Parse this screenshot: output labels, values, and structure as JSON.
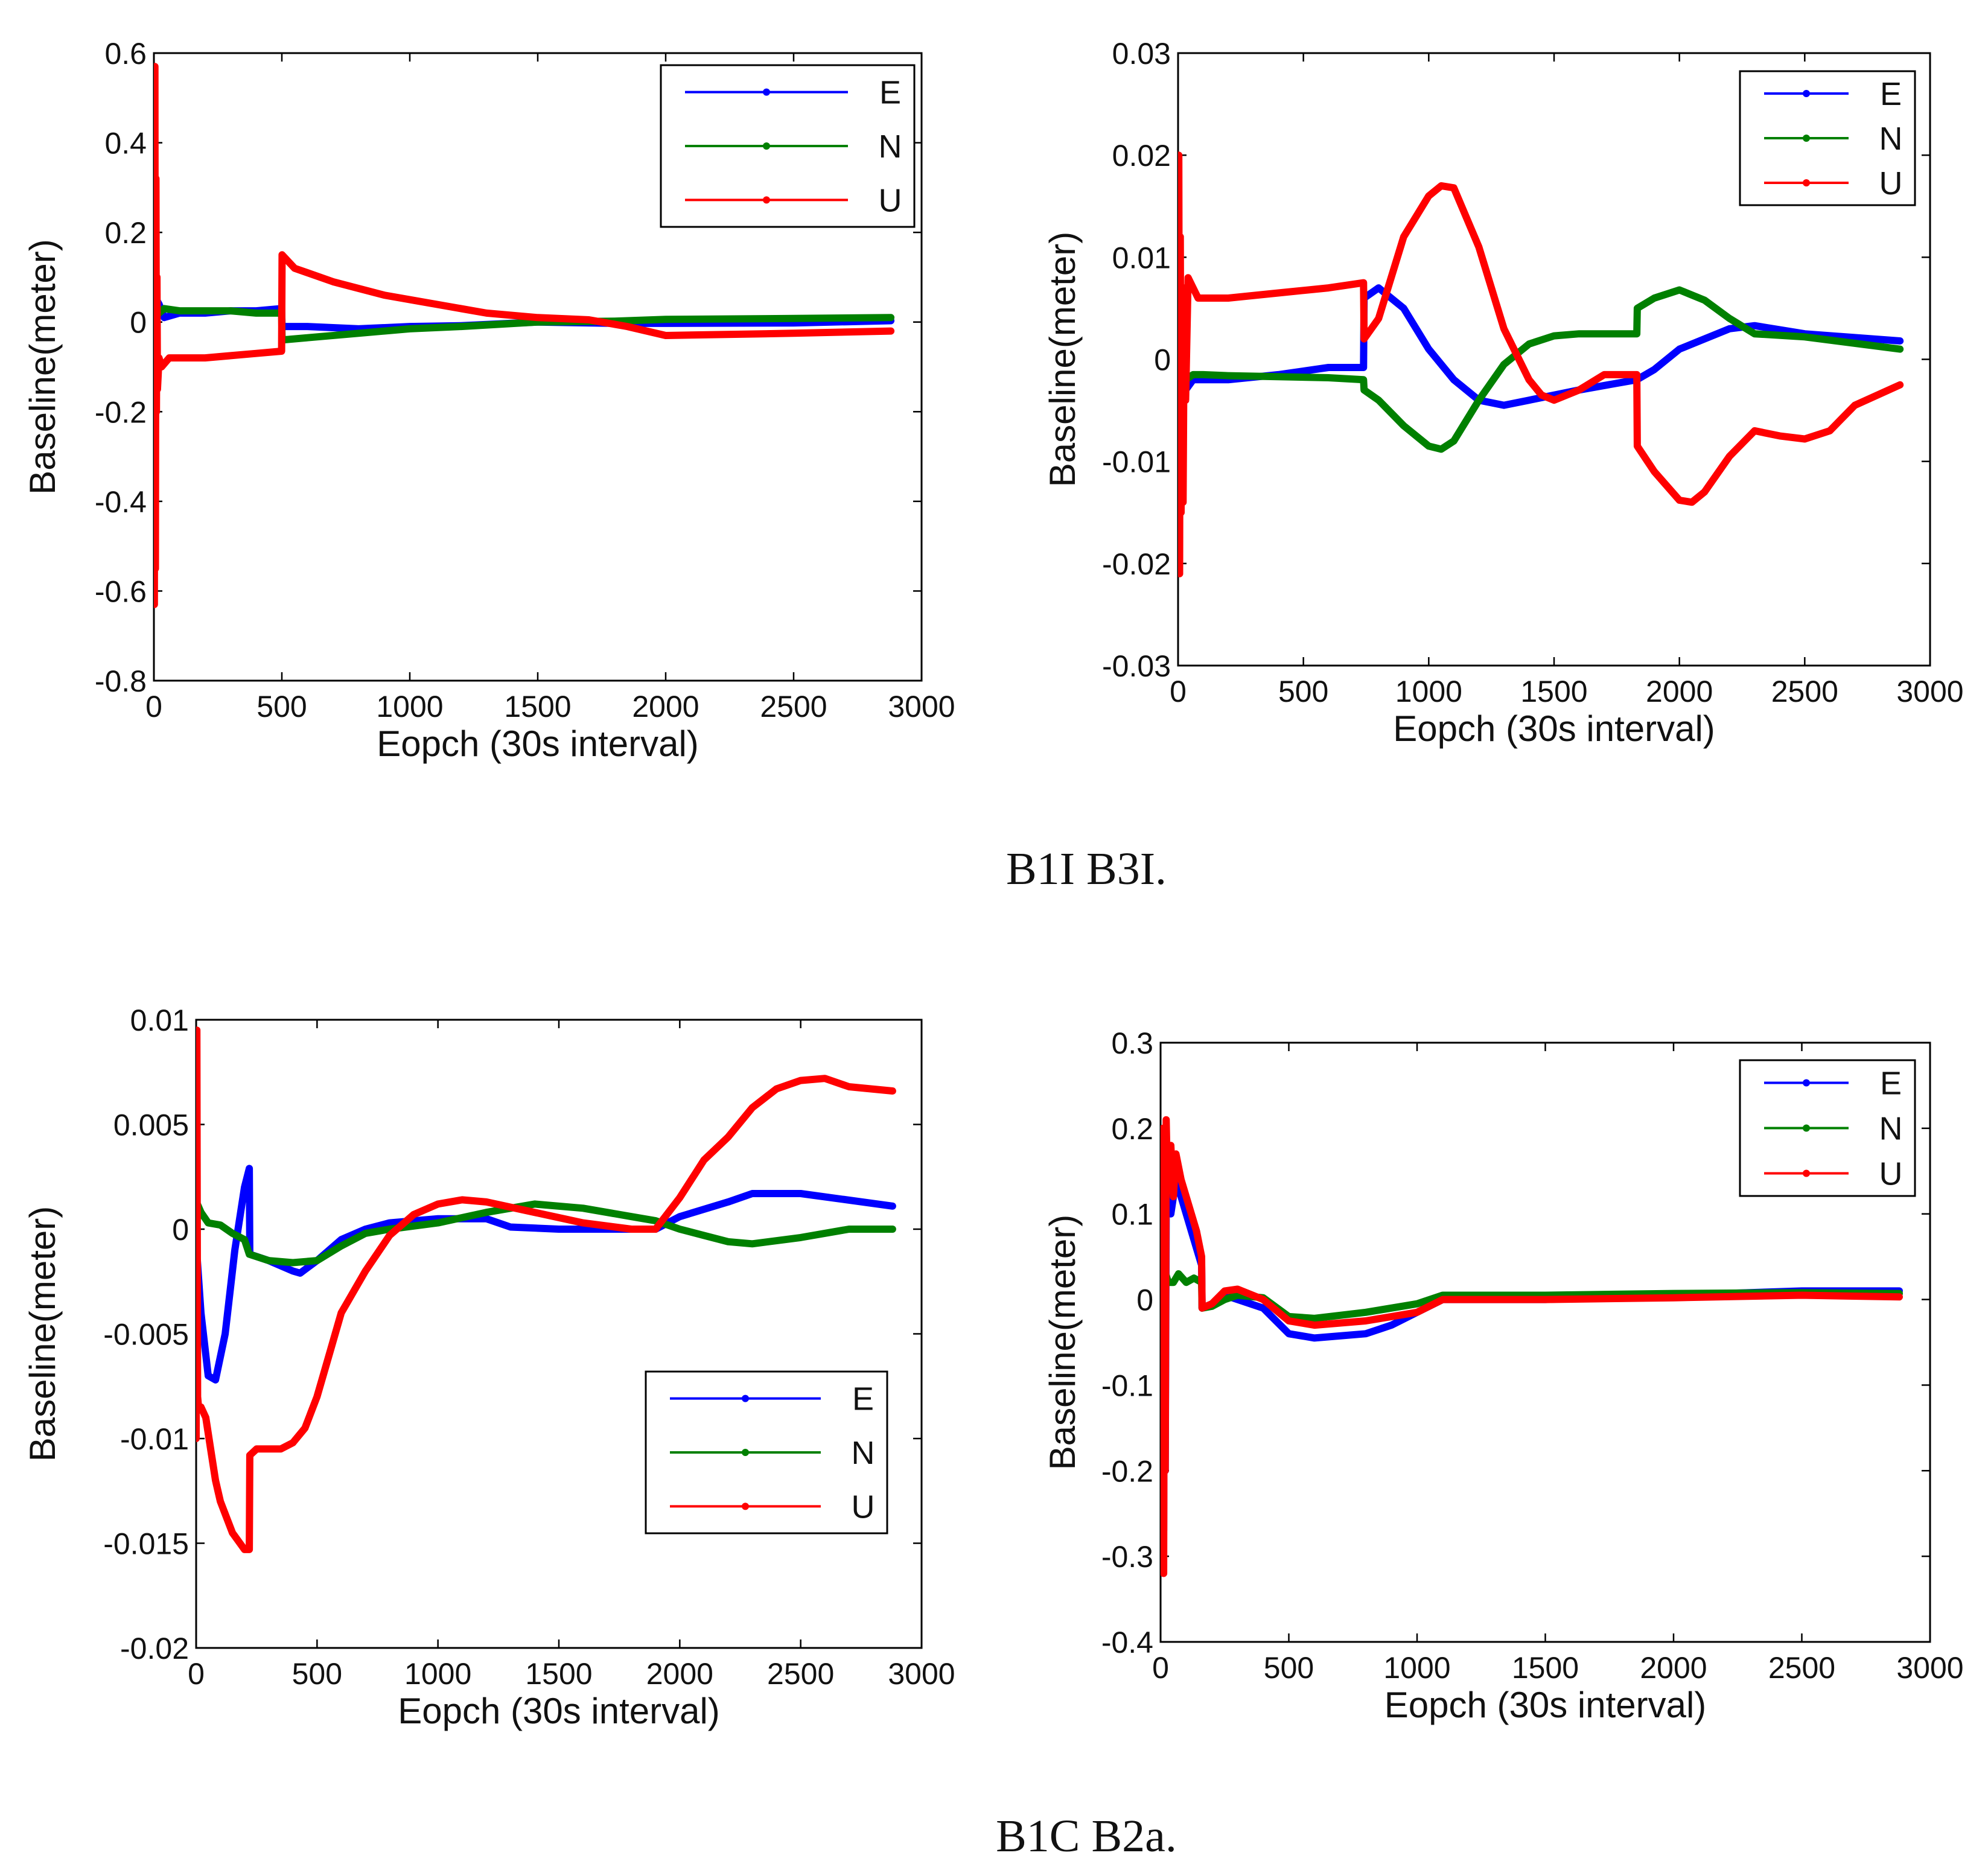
{
  "captions": [
    "B1I B3I.",
    "B1C B2a."
  ],
  "colors": {
    "E": "#0000ff",
    "N": "#008000",
    "U": "#ff0000"
  },
  "chart_data": [
    {
      "type": "line",
      "xlabel": "Eopch (30s interval)",
      "ylabel": "Baseline(meter)",
      "xlim": [
        0,
        3000
      ],
      "ylim": [
        -0.8,
        0.6
      ],
      "xticks": [
        0,
        500,
        1000,
        1500,
        2000,
        2500,
        3000
      ],
      "xtick_labels": [
        "0",
        "500",
        "1000",
        "1500",
        "2000",
        "2500",
        "3000"
      ],
      "yticks": [
        -0.8,
        -0.6,
        -0.4,
        -0.2,
        0,
        0.2,
        0.4,
        0.6
      ],
      "ytick_labels": [
        "-0.8",
        "-0.6",
        "-0.4",
        "-0.2",
        "0",
        "0.2",
        "0.4",
        "0.6"
      ],
      "legend": "top-right",
      "series": [
        {
          "name": "E",
          "color": "#0000ff",
          "x": [
            0,
            5,
            10,
            20,
            40,
            100,
            200,
            300,
            400,
            499,
            501,
            600,
            800,
            1000,
            1200,
            1500,
            1800,
            2000,
            2500,
            2880
          ],
          "y": [
            0,
            -0.1,
            0.05,
            0.04,
            0.01,
            0.02,
            0.02,
            0.025,
            0.025,
            0.03,
            -0.01,
            -0.01,
            -0.015,
            -0.01,
            -0.008,
            0,
            -0.003,
            -0.003,
            -0.002,
            0.003
          ]
        },
        {
          "name": "N",
          "color": "#008000",
          "x": [
            0,
            5,
            10,
            20,
            40,
            100,
            200,
            300,
            400,
            499,
            501,
            600,
            800,
            1000,
            1200,
            1500,
            1800,
            2000,
            2500,
            2880
          ],
          "y": [
            0,
            -0.25,
            0.03,
            0.02,
            0.03,
            0.025,
            0.025,
            0.025,
            0.02,
            0.02,
            -0.04,
            -0.035,
            -0.025,
            -0.015,
            -0.01,
            0,
            0.002,
            0.006,
            0.008,
            0.01
          ]
        },
        {
          "name": "U",
          "color": "#ff0000",
          "x": [
            0,
            2,
            4,
            6,
            8,
            10,
            12,
            14,
            20,
            30,
            60,
            100,
            200,
            300,
            400,
            499,
            501,
            550,
            700,
            900,
            1100,
            1300,
            1500,
            1700,
            1850,
            2000,
            2500,
            2880
          ],
          "y": [
            0.1,
            -0.63,
            0.57,
            -0.55,
            0.32,
            -0.2,
            0.1,
            -0.15,
            -0.08,
            -0.1,
            -0.08,
            -0.08,
            -0.08,
            -0.075,
            -0.07,
            -0.065,
            0.15,
            0.12,
            0.09,
            0.06,
            0.04,
            0.02,
            0.01,
            0.005,
            -0.01,
            -0.03,
            -0.025,
            -0.02
          ]
        }
      ]
    },
    {
      "type": "line",
      "xlabel": "Eopch (30s interval)",
      "ylabel": "Baseline(meter)",
      "xlim": [
        0,
        3000
      ],
      "ylim": [
        -0.03,
        0.03
      ],
      "xticks": [
        0,
        500,
        1000,
        1500,
        2000,
        2500,
        3000
      ],
      "xtick_labels": [
        "0",
        "500",
        "1000",
        "1500",
        "2000",
        "2500",
        "3000"
      ],
      "yticks": [
        -0.03,
        -0.02,
        -0.01,
        0,
        0.01,
        0.02,
        0.03
      ],
      "ytick_labels": [
        "-0.03",
        "-0.02",
        "-0.01",
        "0",
        "0.01",
        "0.02",
        "0.03"
      ],
      "legend": "top-right",
      "series": [
        {
          "name": "E",
          "color": "#0000ff",
          "x": [
            0,
            5,
            15,
            30,
            60,
            100,
            200,
            400,
            600,
            740,
            742,
            800,
            900,
            1000,
            1100,
            1200,
            1300,
            1400,
            1600,
            1830,
            1900,
            2000,
            2100,
            2200,
            2300,
            2500,
            2880
          ],
          "y": [
            0,
            -0.012,
            0.005,
            -0.003,
            -0.002,
            -0.002,
            -0.002,
            -0.0015,
            -0.0008,
            -0.0008,
            0.006,
            0.007,
            0.005,
            0.001,
            -0.002,
            -0.004,
            -0.0045,
            -0.004,
            -0.003,
            -0.002,
            -0.001,
            0.001,
            0.002,
            0.003,
            0.0033,
            0.0025,
            0.0018
          ]
        },
        {
          "name": "N",
          "color": "#008000",
          "x": [
            0,
            5,
            15,
            30,
            60,
            100,
            200,
            400,
            600,
            740,
            742,
            800,
            900,
            1000,
            1050,
            1100,
            1200,
            1300,
            1400,
            1500,
            1600,
            1830,
            1832,
            1900,
            2000,
            2100,
            2200,
            2300,
            2500,
            2880
          ],
          "y": [
            0,
            -0.008,
            0.007,
            -0.002,
            -0.0015,
            -0.0015,
            -0.0016,
            -0.0017,
            -0.0018,
            -0.002,
            -0.003,
            -0.004,
            -0.0065,
            -0.0085,
            -0.0088,
            -0.008,
            -0.004,
            -0.0005,
            0.0015,
            0.0023,
            0.0025,
            0.0025,
            0.005,
            0.006,
            0.0068,
            0.0058,
            0.004,
            0.0025,
            0.0022,
            0.001
          ]
        },
        {
          "name": "U",
          "color": "#ff0000",
          "x": [
            0,
            3,
            6,
            9,
            12,
            15,
            20,
            25,
            30,
            40,
            60,
            80,
            100,
            200,
            400,
            600,
            740,
            742,
            800,
            900,
            1000,
            1050,
            1100,
            1200,
            1300,
            1400,
            1450,
            1500,
            1600,
            1700,
            1830,
            1832,
            1900,
            2000,
            2050,
            2100,
            2200,
            2300,
            2400,
            2500,
            2600,
            2700,
            2880
          ],
          "y": [
            0,
            0.02,
            -0.021,
            0.012,
            -0.015,
            0.004,
            -0.014,
            0.007,
            -0.004,
            0.008,
            0.007,
            0.006,
            0.006,
            0.006,
            0.0065,
            0.007,
            0.0075,
            0.002,
            0.004,
            0.012,
            0.016,
            0.017,
            0.0168,
            0.011,
            0.003,
            -0.002,
            -0.0035,
            -0.004,
            -0.003,
            -0.0015,
            -0.0015,
            -0.0085,
            -0.011,
            -0.0138,
            -0.014,
            -0.013,
            -0.0095,
            -0.007,
            -0.0075,
            -0.0078,
            -0.007,
            -0.0045,
            -0.0025
          ]
        }
      ]
    },
    {
      "type": "line",
      "xlabel": "Eopch (30s interval)",
      "ylabel": "Baseline(meter)",
      "xlim": [
        0,
        3000
      ],
      "ylim": [
        -0.02,
        0.01
      ],
      "xticks": [
        0,
        500,
        1000,
        1500,
        2000,
        2500,
        3000
      ],
      "xtick_labels": [
        "0",
        "500",
        "1000",
        "1500",
        "2000",
        "2500",
        "3000"
      ],
      "yticks": [
        -0.02,
        -0.015,
        -0.01,
        -0.005,
        0,
        0.005,
        0.01
      ],
      "ytick_labels": [
        "-0.02",
        "-0.015",
        "-0.01",
        "-0.005",
        "0",
        "0.005",
        "0.01"
      ],
      "legend": "bottom-right",
      "series": [
        {
          "name": "E",
          "color": "#0000ff",
          "x": [
            0,
            5,
            20,
            50,
            80,
            120,
            160,
            200,
            220,
            222,
            300,
            400,
            430,
            500,
            600,
            700,
            800,
            1000,
            1200,
            1300,
            1500,
            1700,
            1900,
            2000,
            2200,
            2300,
            2500,
            2880
          ],
          "y": [
            -0.0012,
            -0.0015,
            -0.004,
            -0.007,
            -0.0072,
            -0.005,
            -0.001,
            0.002,
            0.0029,
            -0.0012,
            -0.0015,
            -0.002,
            -0.0021,
            -0.0015,
            -0.0005,
            0,
            0.0003,
            0.0005,
            0.0005,
            0.0001,
            0,
            0,
            0,
            0.0006,
            0.0013,
            0.0017,
            0.0017,
            0.0011
          ]
        },
        {
          "name": "N",
          "color": "#008000",
          "x": [
            0,
            5,
            20,
            50,
            100,
            150,
            200,
            220,
            300,
            400,
            500,
            600,
            700,
            800,
            1000,
            1200,
            1400,
            1600,
            1800,
            1900,
            2000,
            2100,
            2200,
            2300,
            2500,
            2700,
            2880
          ],
          "y": [
            -0.004,
            0.0012,
            0.0008,
            0.0003,
            0.0002,
            -0.0002,
            -0.0005,
            -0.0012,
            -0.0015,
            -0.0016,
            -0.0015,
            -0.0008,
            -0.0002,
            0,
            0.0003,
            0.0008,
            0.0012,
            0.001,
            0.0006,
            0.0004,
            0,
            -0.0003,
            -0.0006,
            -0.0007,
            -0.0004,
            0,
            0
          ]
        },
        {
          "name": "U",
          "color": "#ff0000",
          "x": [
            0,
            3,
            6,
            10,
            20,
            40,
            60,
            80,
            100,
            150,
            200,
            220,
            222,
            250,
            300,
            350,
            400,
            450,
            500,
            550,
            600,
            700,
            800,
            900,
            1000,
            1100,
            1200,
            1400,
            1600,
            1800,
            1900,
            2000,
            2100,
            2200,
            2300,
            2400,
            2500,
            2600,
            2700,
            2880
          ],
          "y": [
            -0.01,
            0.0095,
            -0.008,
            -0.0085,
            -0.0085,
            -0.009,
            -0.0105,
            -0.012,
            -0.013,
            -0.0145,
            -0.0153,
            -0.0153,
            -0.0108,
            -0.0105,
            -0.0105,
            -0.0105,
            -0.0102,
            -0.0095,
            -0.008,
            -0.006,
            -0.004,
            -0.002,
            -0.0003,
            0.0007,
            0.0012,
            0.0014,
            0.0013,
            0.0008,
            0.0003,
            0,
            0,
            0.0015,
            0.0033,
            0.0044,
            0.0058,
            0.0067,
            0.0071,
            0.0072,
            0.0068,
            0.0066
          ]
        }
      ]
    },
    {
      "type": "line",
      "xlabel": "Eopch (30s interval)",
      "ylabel": "Baseline(meter)",
      "xlim": [
        0,
        3000
      ],
      "ylim": [
        -0.4,
        0.3
      ],
      "xticks": [
        0,
        500,
        1000,
        1500,
        2000,
        2500,
        3000
      ],
      "xtick_labels": [
        "0",
        "500",
        "1000",
        "1500",
        "2000",
        "2500",
        "3000"
      ],
      "yticks": [
        -0.4,
        -0.3,
        -0.2,
        -0.1,
        0,
        0.1,
        0.2,
        0.3
      ],
      "ytick_labels": [
        "-0.4",
        "-0.3",
        "-0.2",
        "-0.1",
        "0",
        "0.1",
        "0.2",
        "0.3"
      ],
      "legend": "top-right",
      "series": [
        {
          "name": "E",
          "color": "#0000ff",
          "x": [
            0,
            3,
            6,
            9,
            12,
            15,
            18,
            22,
            30,
            40,
            60,
            80,
            100,
            120,
            140,
            160,
            162,
            200,
            250,
            300,
            400,
            500,
            600,
            800,
            900,
            1000,
            1100,
            1200,
            1500,
            2000,
            2500,
            2880
          ],
          "y": [
            0,
            0.17,
            -0.25,
            0.12,
            -0.27,
            0.05,
            -0.2,
            0.1,
            0.12,
            0.1,
            0.14,
            0.12,
            0.1,
            0.08,
            0.06,
            0.04,
            -0.01,
            -0.005,
            0.005,
            0,
            -0.01,
            -0.04,
            -0.045,
            -0.04,
            -0.03,
            -0.015,
            0,
            0,
            0,
            0.005,
            0.01,
            0.01
          ]
        },
        {
          "name": "N",
          "color": "#008000",
          "x": [
            0,
            3,
            6,
            9,
            12,
            15,
            20,
            30,
            50,
            70,
            100,
            130,
            160,
            162,
            200,
            250,
            300,
            400,
            500,
            600,
            800,
            1000,
            1100,
            1200,
            1500,
            2000,
            2500,
            2880
          ],
          "y": [
            0,
            -0.03,
            0.03,
            -0.04,
            0.02,
            -0.02,
            0.03,
            0.02,
            0.02,
            0.03,
            0.02,
            0.025,
            0.02,
            -0.01,
            -0.008,
            0,
            0.005,
            0.002,
            -0.02,
            -0.022,
            -0.015,
            -0.005,
            0.005,
            0.005,
            0.005,
            0.007,
            0.008,
            0.007
          ]
        },
        {
          "name": "U",
          "color": "#ff0000",
          "x": [
            0,
            3,
            6,
            9,
            12,
            15,
            18,
            22,
            26,
            30,
            40,
            50,
            60,
            80,
            100,
            120,
            140,
            160,
            162,
            200,
            250,
            300,
            400,
            500,
            600,
            800,
            1000,
            1100,
            1200,
            1500,
            2000,
            2500,
            2880
          ],
          "y": [
            0,
            0.1,
            -0.3,
            0.2,
            -0.32,
            0.1,
            -0.2,
            0.21,
            0.15,
            0.16,
            0.18,
            0.12,
            0.17,
            0.14,
            0.12,
            0.1,
            0.08,
            0.05,
            -0.01,
            -0.005,
            0.01,
            0.012,
            0,
            -0.025,
            -0.03,
            -0.025,
            -0.015,
            0,
            0,
            0,
            0.002,
            0.005,
            0.003
          ]
        }
      ]
    }
  ]
}
